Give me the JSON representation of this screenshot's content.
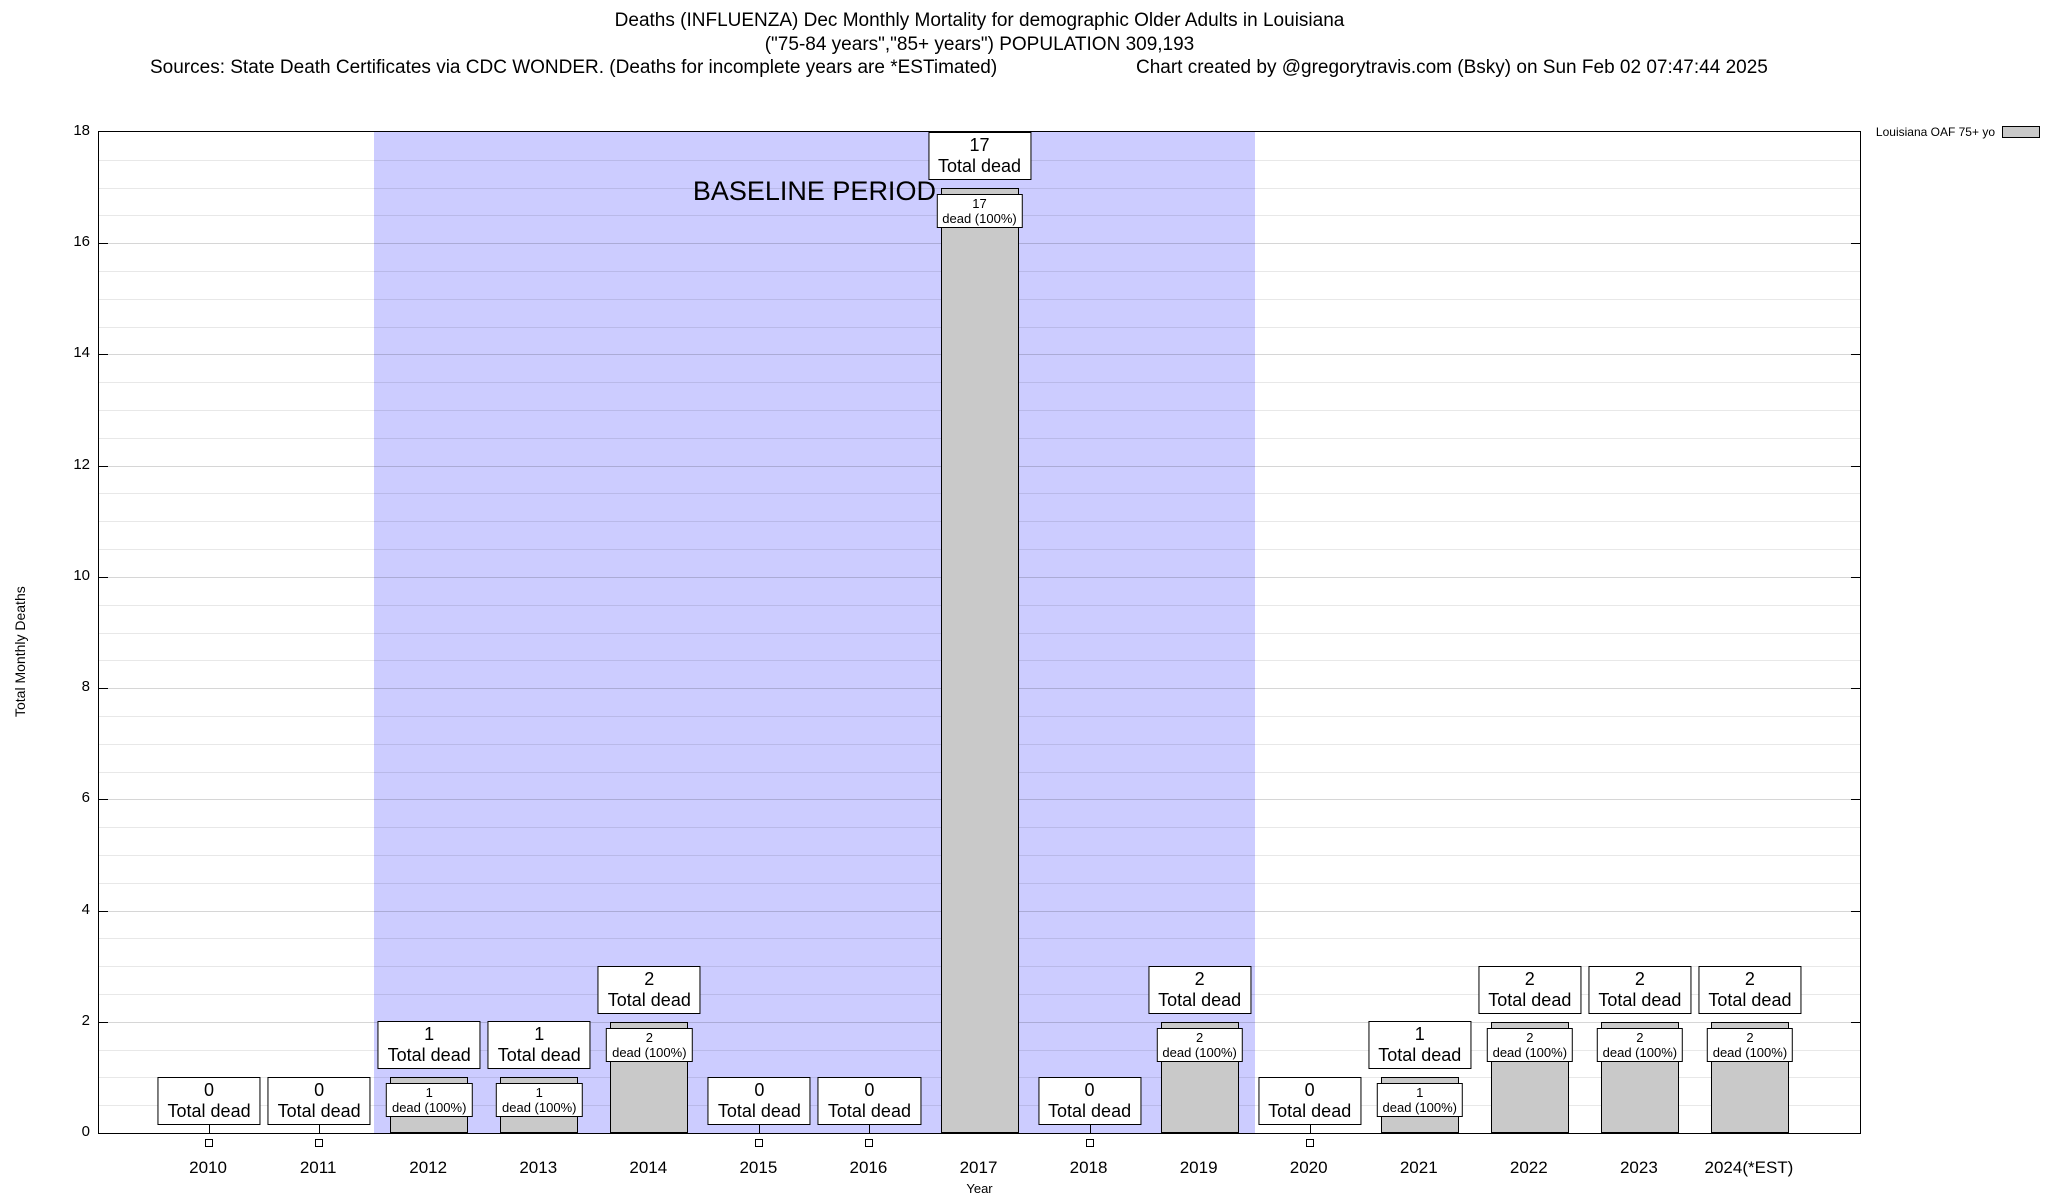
{
  "header": {
    "title_line1": "Deaths (INFLUENZA) Dec Monthly Mortality for demographic Older Adults in Louisiana",
    "title_line2": "(\"75-84 years\",\"85+ years\") POPULATION 309,193",
    "sources": "Sources: State Death Certificates via CDC WONDER. (Deaths for incomplete years are *ESTimated)",
    "credit": "Chart created by @gregorytravis.com (Bsky) on Sun Feb 02 07:47:44 2025"
  },
  "legend": {
    "label": "Louisiana OAF 75+ yo"
  },
  "chart_data": {
    "type": "bar",
    "title": "Deaths (INFLUENZA) Dec Monthly Mortality for demographic Older Adults in Louisiana",
    "subtitle": "(\"75-84 years\",\"85+ years\") POPULATION 309,193",
    "xlabel": "Year",
    "ylabel": "Total Monthly Deaths",
    "ylim": [
      0,
      18
    ],
    "ytick_step": 2,
    "grid_minor_step": 0.5,
    "xrange": [
      2009,
      2025
    ],
    "grid": true,
    "legend_position": "top-right-outside",
    "categories": [
      "2010",
      "2011",
      "2012",
      "2013",
      "2014",
      "2015",
      "2016",
      "2017",
      "2018",
      "2019",
      "2020",
      "2021",
      "2022",
      "2023",
      "2024(*EST)"
    ],
    "years_numeric": [
      2010,
      2011,
      2012,
      2013,
      2014,
      2015,
      2016,
      2017,
      2018,
      2019,
      2020,
      2021,
      2022,
      2023,
      2024
    ],
    "series": [
      {
        "name": "Louisiana OAF 75+ yo",
        "values": [
          0,
          0,
          1,
          1,
          2,
          0,
          0,
          17,
          0,
          2,
          0,
          1,
          2,
          2,
          2
        ]
      }
    ],
    "annotations": {
      "baseline_region": {
        "label": "BASELINE PERIOD",
        "x_from": 2011.5,
        "x_to": 2019.5,
        "color": "#ccccff"
      },
      "total_label_suffix": "Total dead",
      "inbar_label_suffix": "dead (100%)"
    },
    "colors": {
      "bar_fill": "#c9c9c9",
      "bar_border": "#000000"
    }
  }
}
